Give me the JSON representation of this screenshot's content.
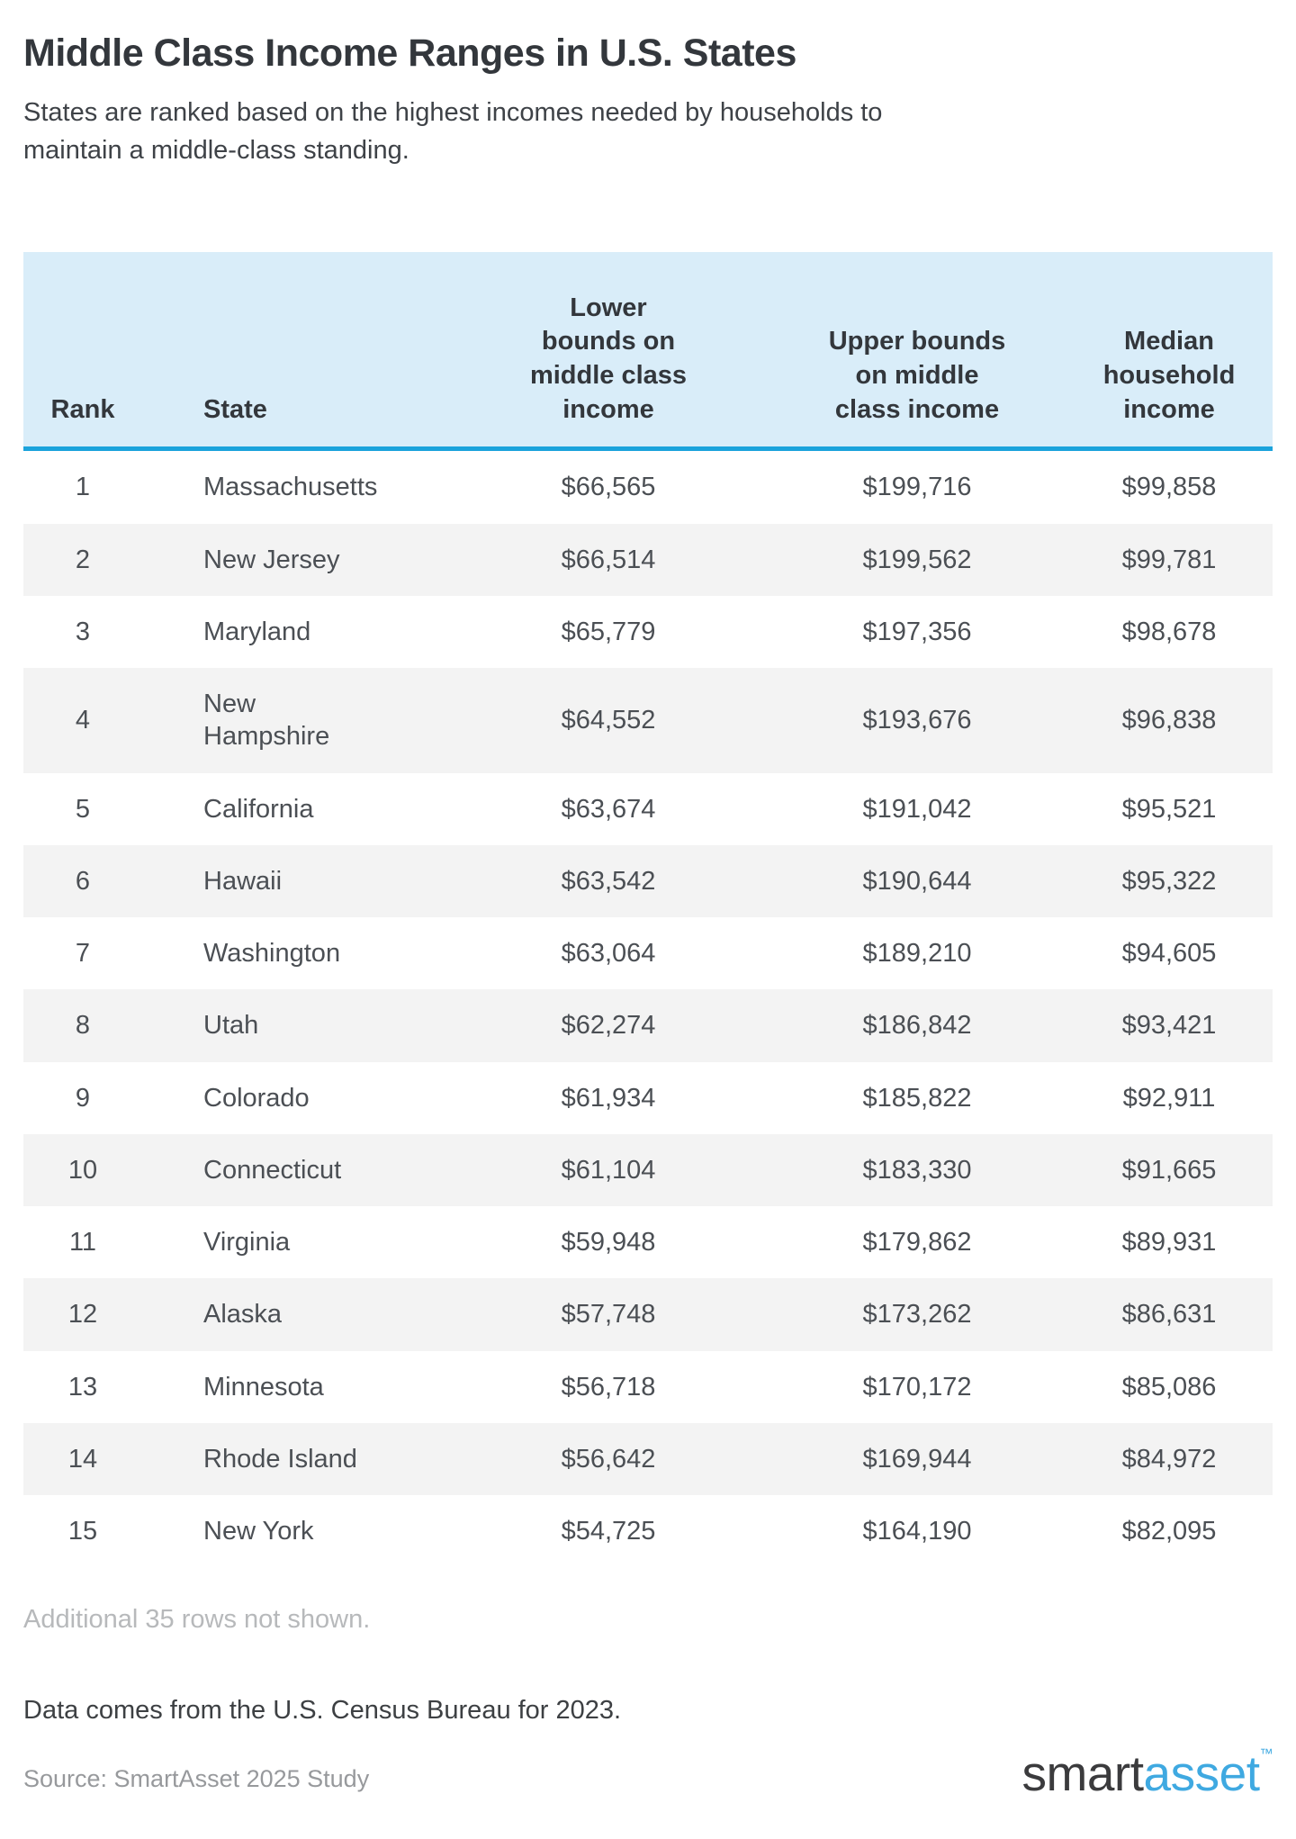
{
  "page": {
    "title": "Middle Class Income Ranges in U.S. States",
    "subtitle": "States are ranked based on the highest incomes needed by households to\nmaintain a middle-class standing."
  },
  "table": {
    "columns": [
      {
        "key": "rank",
        "label": "Rank"
      },
      {
        "key": "state",
        "label": "State"
      },
      {
        "key": "lower",
        "label": "Lower\nbounds on\nmiddle class\nincome"
      },
      {
        "key": "upper",
        "label": "Upper bounds\non middle\nclass income"
      },
      {
        "key": "median",
        "label": "Median\nhousehold\nincome"
      }
    ],
    "rows": [
      {
        "rank": "1",
        "state": "Massachusetts",
        "lower": "$66,565",
        "upper": "$199,716",
        "median": "$99,858"
      },
      {
        "rank": "2",
        "state": "New Jersey",
        "lower": "$66,514",
        "upper": "$199,562",
        "median": "$99,781"
      },
      {
        "rank": "3",
        "state": "Maryland",
        "lower": "$65,779",
        "upper": "$197,356",
        "median": "$98,678"
      },
      {
        "rank": "4",
        "state": "New\nHampshire",
        "lower": "$64,552",
        "upper": "$193,676",
        "median": "$96,838"
      },
      {
        "rank": "5",
        "state": "California",
        "lower": "$63,674",
        "upper": "$191,042",
        "median": "$95,521"
      },
      {
        "rank": "6",
        "state": "Hawaii",
        "lower": "$63,542",
        "upper": "$190,644",
        "median": "$95,322"
      },
      {
        "rank": "7",
        "state": "Washington",
        "lower": "$63,064",
        "upper": "$189,210",
        "median": "$94,605"
      },
      {
        "rank": "8",
        "state": "Utah",
        "lower": "$62,274",
        "upper": "$186,842",
        "median": "$93,421"
      },
      {
        "rank": "9",
        "state": "Colorado",
        "lower": "$61,934",
        "upper": "$185,822",
        "median": "$92,911"
      },
      {
        "rank": "10",
        "state": "Connecticut",
        "lower": "$61,104",
        "upper": "$183,330",
        "median": "$91,665"
      },
      {
        "rank": "11",
        "state": "Virginia",
        "lower": "$59,948",
        "upper": "$179,862",
        "median": "$89,931"
      },
      {
        "rank": "12",
        "state": "Alaska",
        "lower": "$57,748",
        "upper": "$173,262",
        "median": "$86,631"
      },
      {
        "rank": "13",
        "state": "Minnesota",
        "lower": "$56,718",
        "upper": "$170,172",
        "median": "$85,086"
      },
      {
        "rank": "14",
        "state": "Rhode Island",
        "lower": "$56,642",
        "upper": "$169,944",
        "median": "$84,972"
      },
      {
        "rank": "15",
        "state": "New York",
        "lower": "$54,725",
        "upper": "$164,190",
        "median": "$82,095"
      }
    ]
  },
  "footer": {
    "additional_note": "Additional 35 rows not shown.",
    "data_note": "Data comes from the U.S. Census Bureau for 2023.",
    "source": "Source: SmartAsset 2025 Study",
    "logo": {
      "smart": "smart",
      "asset": "asset",
      "tm": "™"
    }
  },
  "colors": {
    "header_background": "#d9edf9",
    "header_border": "#1ba3dc",
    "row_stripe": "#f3f3f3",
    "title_text": "#33373c",
    "body_text": "#4b4f54",
    "muted_note": "#b7b9bb",
    "source_text": "#97999c",
    "logo_blue": "#3fa9e1"
  },
  "chart_data": {
    "type": "table",
    "title": "Middle Class Income Ranges in U.S. States",
    "subtitle": "States are ranked based on the highest incomes needed by households to maintain a middle-class standing.",
    "columns": [
      "Rank",
      "State",
      "Lower bounds on middle class income",
      "Upper bounds on middle class income",
      "Median household income"
    ],
    "rows": [
      [
        1,
        "Massachusetts",
        66565,
        199716,
        99858
      ],
      [
        2,
        "New Jersey",
        66514,
        199562,
        99781
      ],
      [
        3,
        "Maryland",
        65779,
        197356,
        98678
      ],
      [
        4,
        "New Hampshire",
        64552,
        193676,
        96838
      ],
      [
        5,
        "California",
        63674,
        191042,
        95521
      ],
      [
        6,
        "Hawaii",
        63542,
        190644,
        95322
      ],
      [
        7,
        "Washington",
        63064,
        189210,
        94605
      ],
      [
        8,
        "Utah",
        62274,
        186842,
        93421
      ],
      [
        9,
        "Colorado",
        61934,
        185822,
        92911
      ],
      [
        10,
        "Connecticut",
        61104,
        183330,
        91665
      ],
      [
        11,
        "Virginia",
        59948,
        179862,
        89931
      ],
      [
        12,
        "Alaska",
        57748,
        173262,
        86631
      ],
      [
        13,
        "Minnesota",
        56718,
        170172,
        85086
      ],
      [
        14,
        "Rhode Island",
        56642,
        169944,
        84972
      ],
      [
        15,
        "New York",
        54725,
        164190,
        82095
      ]
    ],
    "notes": [
      "Additional 35 rows not shown.",
      "Data comes from the U.S. Census Bureau for 2023.",
      "Source: SmartAsset 2025 Study"
    ]
  }
}
